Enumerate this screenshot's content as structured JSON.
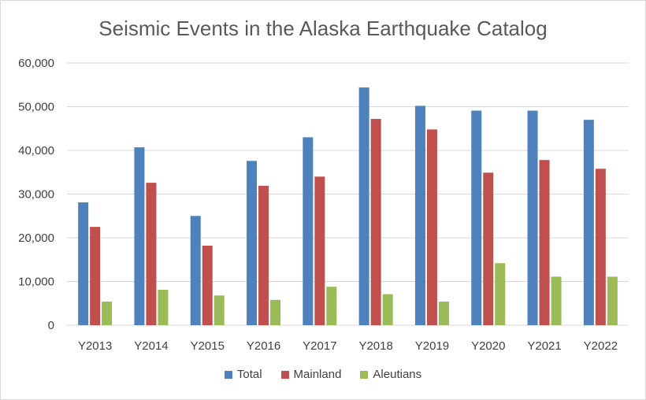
{
  "chart_data": {
    "type": "bar",
    "title": "Seismic Events in the Alaska Earthquake Catalog",
    "xlabel": "",
    "ylabel": "",
    "categories": [
      "Y2013",
      "Y2014",
      "Y2015",
      "Y2016",
      "Y2017",
      "Y2018",
      "Y2019",
      "Y2020",
      "Y2021",
      "Y2022"
    ],
    "series": [
      {
        "name": "Total",
        "color": "#4f81bd",
        "values": [
          28100,
          40700,
          25000,
          37600,
          43000,
          54400,
          50200,
          49100,
          49100,
          47000
        ]
      },
      {
        "name": "Mainland",
        "color": "#c0504d",
        "values": [
          22500,
          32600,
          18200,
          31900,
          34000,
          47200,
          44800,
          34900,
          37800,
          35800
        ]
      },
      {
        "name": "Aleutians",
        "color": "#9bbb59",
        "values": [
          5400,
          8100,
          6800,
          5800,
          8800,
          7100,
          5400,
          14200,
          11100,
          11100
        ]
      }
    ],
    "ylim": [
      0,
      60000
    ],
    "yticks": [
      0,
      10000,
      20000,
      30000,
      40000,
      50000,
      60000
    ],
    "ytick_labels": [
      "0",
      "10,000",
      "20,000",
      "30,000",
      "40,000",
      "50,000",
      "60,000"
    ],
    "grid": true,
    "legend_position": "bottom"
  }
}
